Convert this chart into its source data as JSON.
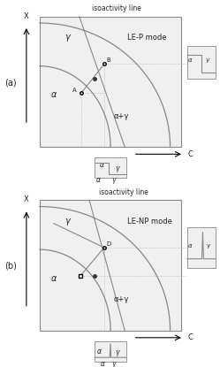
{
  "fig_width": 2.49,
  "fig_height": 4.15,
  "dpi": 100,
  "bg_color": "#ffffff",
  "gray_curve": "#888888",
  "gray_dot": "#333333",
  "gray_box_edge": "#aaaaaa",
  "box_face": "#eeeeee",
  "dotted_color": "#aaaaaa",
  "text_color": "#222222",
  "panel_a": {
    "label": "(a)",
    "mode_text": "LE-P mode",
    "iso_text": "isoactivity line",
    "label_gamma": "γ",
    "label_alpha": "α",
    "label_alpha_gamma": "α+γ",
    "label_X": "X",
    "label_C": "C",
    "label_B": "B",
    "label_A": "A",
    "point_B": [
      0.455,
      0.635
    ],
    "point_A": [
      0.295,
      0.415
    ],
    "dot": [
      0.385,
      0.52
    ]
  },
  "panel_b": {
    "label": "(b)",
    "mode_text": "LE-NP mode",
    "iso_text": "isoactivity line",
    "label_gamma": "γ",
    "label_alpha": "α",
    "label_alpha_gamma": "α+γ",
    "label_X": "X",
    "label_C": "C",
    "label_D": "D",
    "point_D": [
      0.455,
      0.635
    ],
    "point_open": [
      0.285,
      0.415
    ],
    "dot": [
      0.385,
      0.415
    ]
  }
}
